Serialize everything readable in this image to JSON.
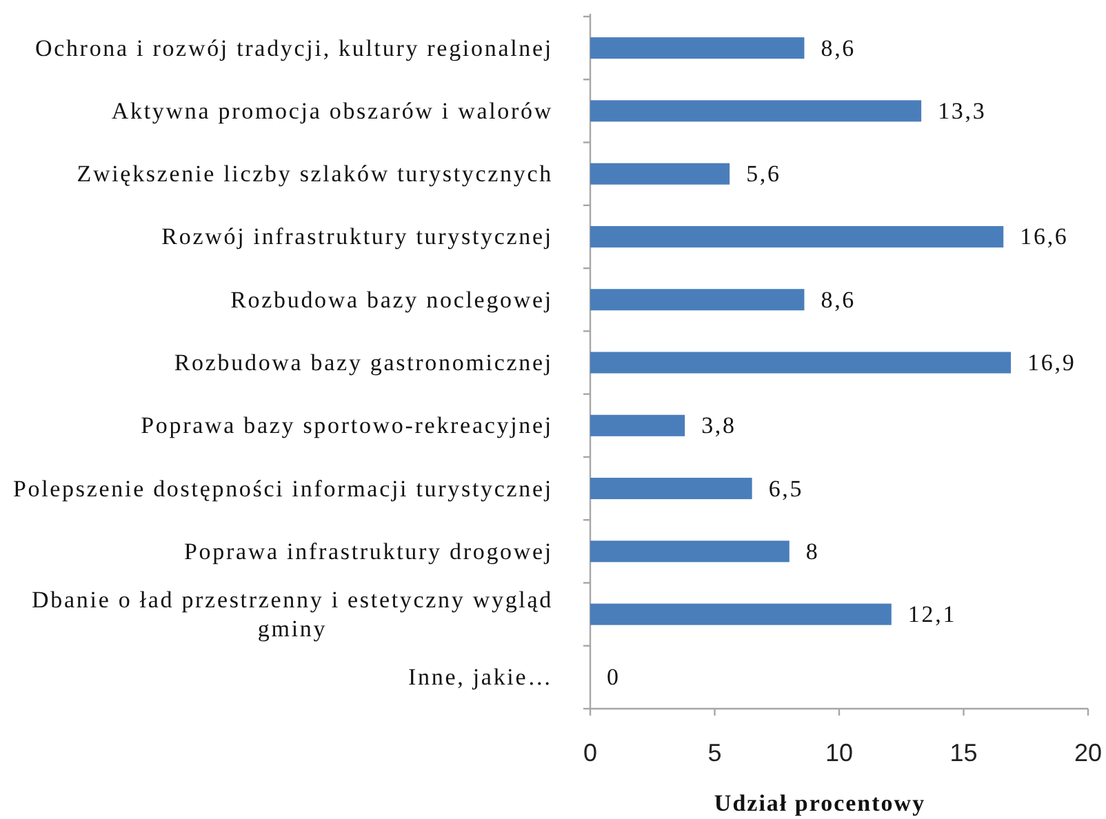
{
  "chart_data": {
    "type": "bar",
    "orientation": "horizontal",
    "xlabel": "Udział procentowy",
    "categories": [
      "Ochrona i rozwój tradycji, kultury regionalnej",
      "Aktywna promocja obszarów i walorów",
      "Zwiększenie liczby szlaków turystycznych",
      "Rozwój infrastruktury turystycznej",
      "Rozbudowa bazy noclegowej",
      "Rozbudowa bazy gastronomicznej",
      "Poprawa bazy sportowo-rekreacyjnej",
      "Polepszenie dostępności informacji turystycznej",
      "Poprawa infrastruktury drogowej",
      "Dbanie o ład przestrzenny i estetyczny wygląd gminy",
      "Inne, jakie…"
    ],
    "values": [
      8.6,
      13.3,
      5.6,
      16.6,
      8.6,
      16.9,
      3.8,
      6.5,
      8,
      12.1,
      0
    ],
    "value_labels": [
      "8,6",
      "13,3",
      "5,6",
      "16,6",
      "8,6",
      "16,9",
      "3,8",
      "6,5",
      "8",
      "12,1",
      "0"
    ],
    "color": "#4a7ebb",
    "xlim": [
      0,
      20
    ],
    "xticks": [
      0,
      5,
      10,
      15,
      20
    ]
  }
}
